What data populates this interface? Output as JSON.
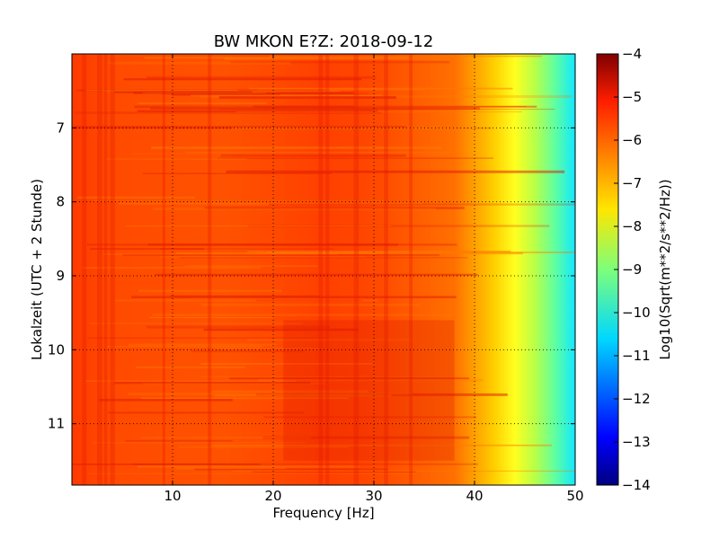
{
  "chart_data": {
    "type": "heatmap",
    "title": "BW MKON E?Z: 2018-09-12",
    "xlabel": "Frequency [Hz]",
    "ylabel": "Lokalzeit (UTC + 2 Stunde)",
    "xlim": [
      0,
      50
    ],
    "ylim": [
      6,
      11.83
    ],
    "y_inverted": true,
    "x_ticks": [
      10,
      20,
      30,
      40,
      50
    ],
    "y_ticks": [
      7,
      8,
      9,
      10,
      11
    ],
    "grid": true,
    "colorbar": {
      "label": "Log10(Sqrt(m**2/s**2/Hz))",
      "range": [
        -14,
        -4
      ],
      "ticks": [
        -4,
        -5,
        -6,
        -7,
        -8,
        -9,
        -10,
        -11,
        -12,
        -13,
        -14
      ],
      "colormap": "jet"
    },
    "profile": {
      "description_values": "approximate power level (colorbar units) by frequency band",
      "frequency": [
        0,
        5,
        10,
        20,
        25,
        30,
        38,
        40,
        42,
        44,
        46,
        48,
        50
      ],
      "level": [
        -5.6,
        -5.9,
        -6.0,
        -6.0,
        -5.7,
        -5.8,
        -6.2,
        -6.6,
        -7.4,
        -7.9,
        -8.4,
        -9.2,
        -10.0
      ]
    }
  }
}
